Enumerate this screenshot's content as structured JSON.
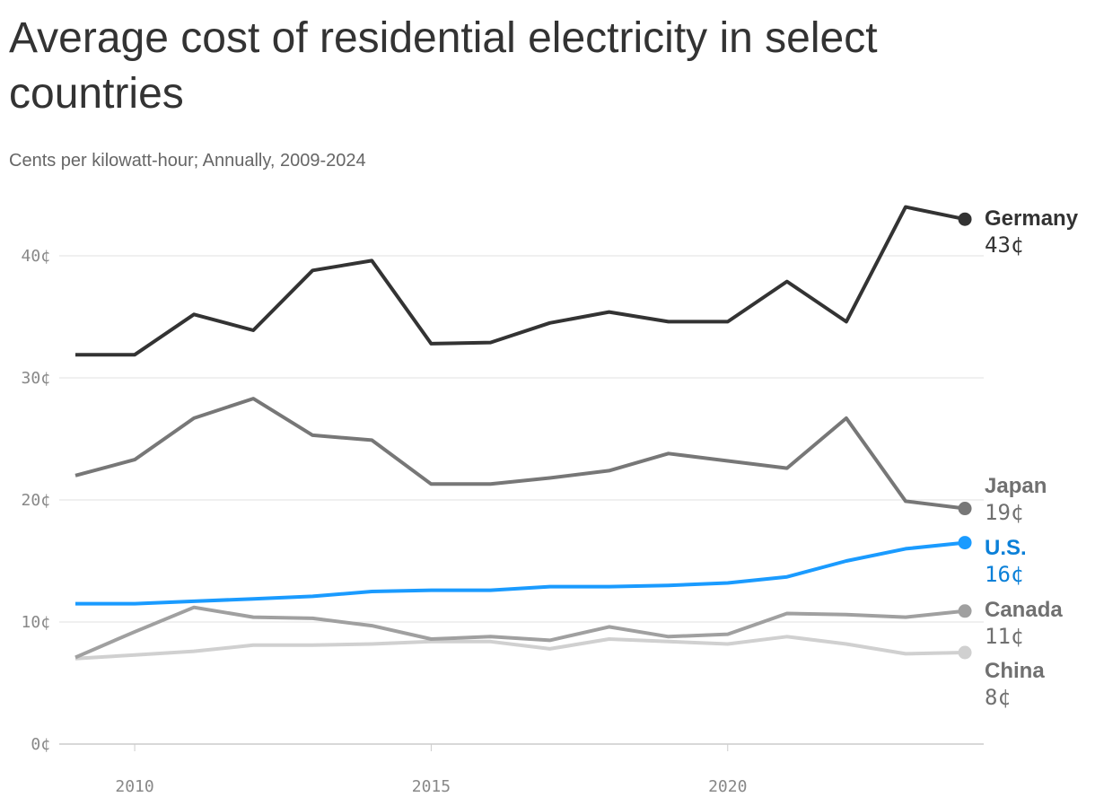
{
  "chart_data": {
    "type": "line",
    "title": "Average cost of residential electricity in select countries",
    "subtitle": "Cents per kilowatt-hour; Annually, 2009-2024",
    "x": [
      2009,
      2010,
      2011,
      2012,
      2013,
      2014,
      2015,
      2016,
      2017,
      2018,
      2019,
      2020,
      2021,
      2022,
      2023,
      2024
    ],
    "xticks": [
      {
        "value": 2010,
        "label": "2010"
      },
      {
        "value": 2015,
        "label": "2015"
      },
      {
        "value": 2020,
        "label": "2020"
      }
    ],
    "yticks": [
      {
        "value": 0,
        "label": "0¢"
      },
      {
        "value": 10,
        "label": "10¢"
      },
      {
        "value": 20,
        "label": "20¢"
      },
      {
        "value": 30,
        "label": "30¢"
      },
      {
        "value": 40,
        "label": "40¢"
      }
    ],
    "ylim": [
      0,
      44
    ],
    "xlim": [
      2009,
      2024
    ],
    "grid": "horizontal",
    "series": [
      {
        "name": "Germany",
        "end_label": "43¢",
        "color": "#333333",
        "label_color": "#333333",
        "values": [
          31.9,
          31.9,
          35.2,
          33.9,
          38.8,
          39.6,
          32.8,
          32.9,
          34.5,
          35.4,
          34.6,
          34.6,
          37.9,
          34.6,
          44.0,
          43.0
        ]
      },
      {
        "name": "Japan",
        "end_label": "19¢",
        "color": "#777777",
        "label_color": "#707070",
        "values": [
          22.0,
          23.3,
          26.7,
          28.3,
          25.3,
          24.9,
          21.3,
          21.3,
          21.8,
          22.4,
          23.8,
          23.2,
          22.6,
          26.7,
          19.9,
          19.3
        ]
      },
      {
        "name": "U.S.",
        "end_label": "16¢",
        "color": "#1a9bff",
        "label_color": "#0b80d8",
        "values": [
          11.5,
          11.5,
          11.7,
          11.9,
          12.1,
          12.5,
          12.6,
          12.6,
          12.9,
          12.9,
          13.0,
          13.2,
          13.7,
          15.0,
          16.0,
          16.5
        ]
      },
      {
        "name": "Canada",
        "end_label": "11¢",
        "color": "#a0a0a0",
        "label_color": "#707070",
        "values": [
          7.1,
          9.2,
          11.2,
          10.4,
          10.3,
          9.7,
          8.6,
          8.8,
          8.5,
          9.6,
          8.8,
          9.0,
          10.7,
          10.6,
          10.4,
          10.9
        ]
      },
      {
        "name": "China",
        "end_label": "8¢",
        "color": "#d0d0d0",
        "label_color": "#707070",
        "values": [
          7.0,
          7.3,
          7.6,
          8.1,
          8.1,
          8.2,
          8.4,
          8.4,
          7.8,
          8.6,
          8.4,
          8.2,
          8.8,
          8.2,
          7.4,
          7.5
        ]
      }
    ]
  }
}
